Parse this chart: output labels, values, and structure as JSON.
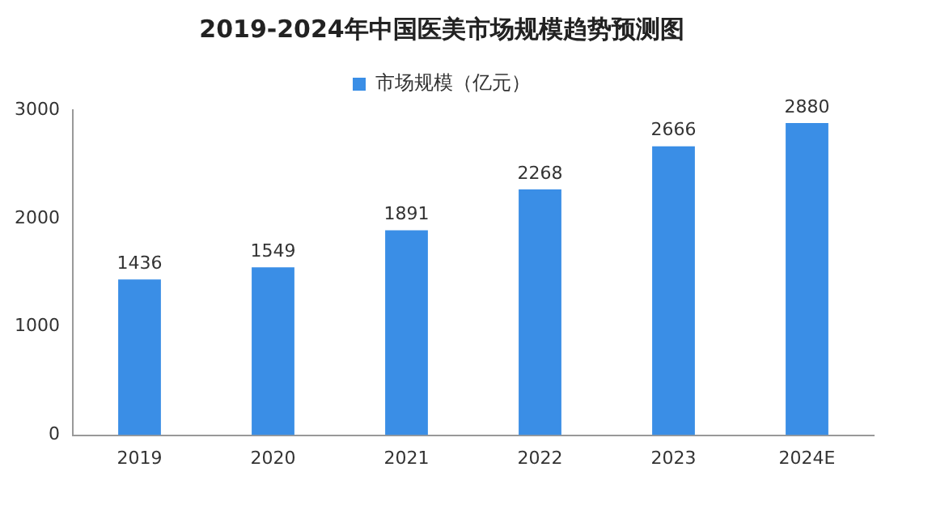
{
  "chart_data": {
    "type": "bar",
    "title": "2019-2024年中国医美市场规模趋势预测图",
    "categories": [
      "2019",
      "2020",
      "2021",
      "2022",
      "2023",
      "2024E"
    ],
    "series": [
      {
        "name": "市场规模（亿元）",
        "color": "#3a8ee6",
        "values": [
          1436,
          1549,
          1891,
          2268,
          2666,
          2880
        ]
      }
    ],
    "ylim": [
      0,
      3000
    ],
    "yticks": [
      0,
      1000,
      2000,
      3000
    ],
    "grid": false,
    "legend": "top",
    "data_labels": true
  }
}
